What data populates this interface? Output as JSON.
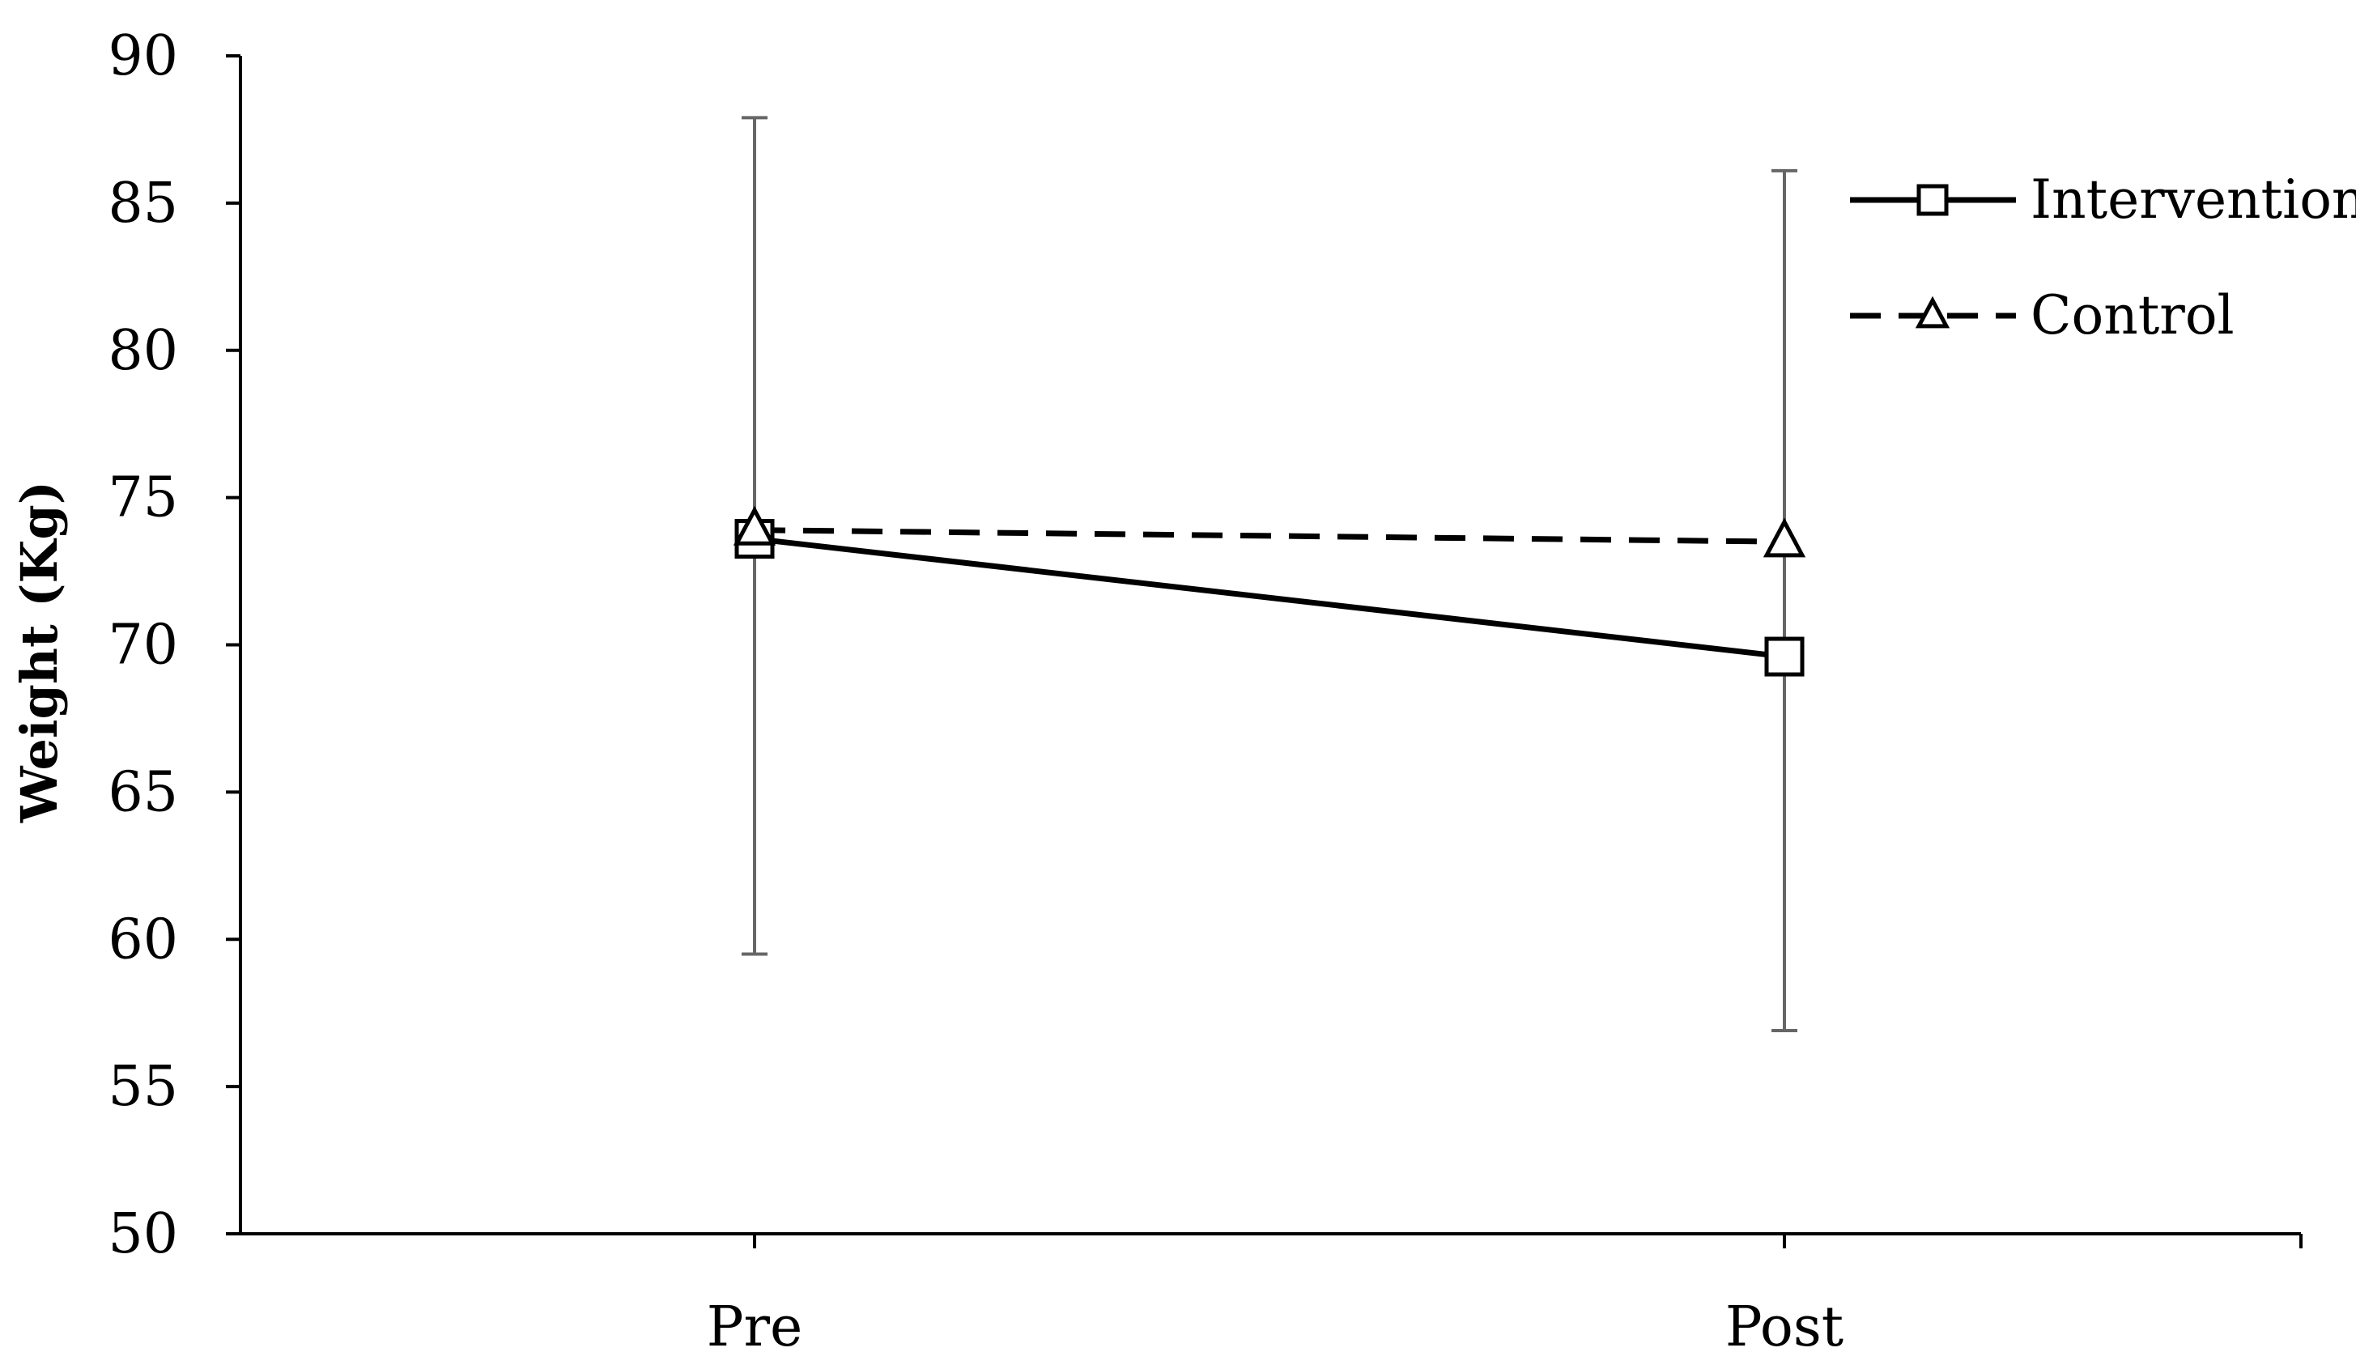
{
  "chart_data": {
    "type": "line",
    "title": "",
    "xlabel": "",
    "ylabel": "Weight (Kg)",
    "categories": [
      "Pre",
      "Post"
    ],
    "ylim": [
      50,
      90
    ],
    "yticks": [
      50,
      55,
      60,
      65,
      70,
      75,
      80,
      85,
      90
    ],
    "grid": false,
    "legend_position": "top-right",
    "series": [
      {
        "name": "Intervention",
        "values": [
          73.6,
          69.6
        ],
        "error_upper": [
          87.9,
          86.1
        ],
        "error_lower": [
          59.5,
          56.9
        ],
        "marker": "square",
        "line_style": "solid",
        "color": "#000000"
      },
      {
        "name": "Control",
        "values": [
          73.9,
          73.5
        ],
        "marker": "triangle",
        "line_style": "dashed",
        "color": "#000000"
      }
    ]
  },
  "colors": {
    "axis": "#000000",
    "error_bar": "#666666",
    "marker_fill": "#ffffff"
  }
}
